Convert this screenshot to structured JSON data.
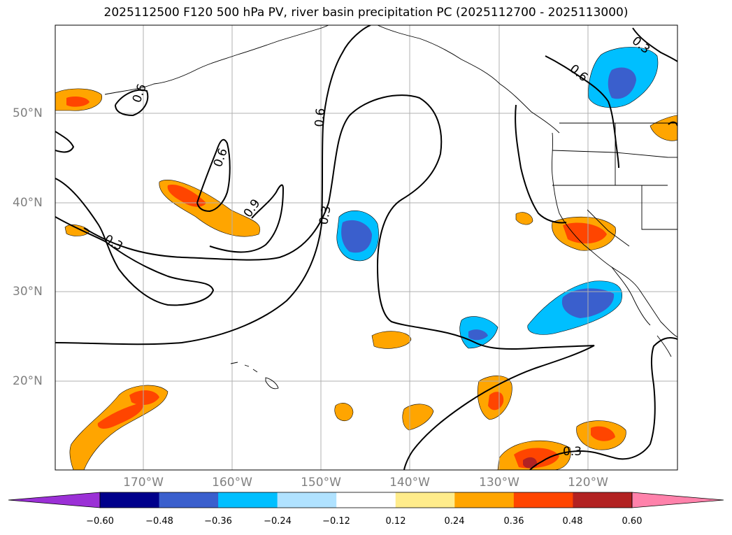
{
  "title": "2025112500 F120 500 hPa PV, river basin precipitation PC (2025112700 - 2025113000)",
  "lat_labels": [
    "50°N",
    "40°N",
    "30°N",
    "20°N"
  ],
  "lon_labels": [
    "170°W",
    "160°W",
    "150°W",
    "140°W",
    "130°W",
    "120°W"
  ],
  "contour_labels": [
    "0.6",
    "0.6",
    "0.6",
    "0.9",
    "0.3",
    "0.3",
    "0.6",
    "0.3",
    "0.3"
  ],
  "colorbar": {
    "colors": [
      "#9b30d6",
      "#00008b",
      "#3a5fcd",
      "#00bfff",
      "#b0e2ff",
      "#ffffff",
      "#ffec8b",
      "#ffa500",
      "#ff4500",
      "#b22222",
      "#ff82ab"
    ],
    "ticks": [
      "−0.60",
      "−0.48",
      "−0.36",
      "−0.24",
      "−0.12",
      "0.12",
      "0.24",
      "0.36",
      "0.48",
      "0.60"
    ]
  }
}
